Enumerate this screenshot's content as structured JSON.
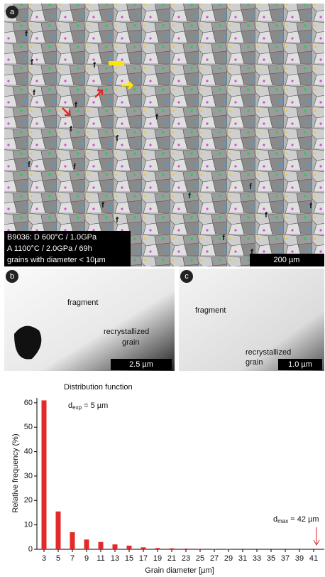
{
  "panel_a": {
    "label": "a",
    "fragment_marks": [
      "f",
      "f",
      "f",
      "f",
      "f",
      "f",
      "f",
      "f",
      "f",
      "f",
      "f",
      "f",
      "f",
      "f",
      "f",
      "f",
      "f",
      "f"
    ],
    "caption": [
      "B9036: D 600°C / 1.0GPa",
      "A 1100°C / 2.0GPa / 69h",
      "grains with diameter < 10µm"
    ],
    "scale_bar": "200 µm"
  },
  "panel_b": {
    "label": "b",
    "fragment": "fragment",
    "recrystallized": [
      "recrystallized",
      "grain"
    ],
    "scale_bar": "2.5 µm"
  },
  "panel_c": {
    "label": "c",
    "fragment": "fragment",
    "recrystallized": [
      "recrystallized",
      "grain"
    ],
    "scale_bar": "1.0 µm"
  },
  "chart_data": {
    "type": "bar",
    "title": "Distribution function",
    "annotations": [
      {
        "main": "d",
        "sub": "exp",
        "rest": " = 5 µm"
      },
      {
        "main": "d",
        "sub": "max",
        "rest": " = 42 µm"
      }
    ],
    "x": [
      3,
      5,
      7,
      9,
      11,
      13,
      15,
      17,
      19,
      21,
      23,
      25,
      27,
      29,
      31,
      33,
      35,
      37,
      39,
      41
    ],
    "values": [
      61,
      15.5,
      7,
      4,
      3,
      2,
      1.5,
      0.8,
      0.5,
      0.4,
      0.3,
      0.2,
      0.1,
      0.1,
      0,
      0,
      0,
      0,
      0,
      0
    ],
    "color": "#e32a2a",
    "xlim": [
      2,
      42.5
    ],
    "xticks": [
      3,
      5,
      7,
      9,
      11,
      13,
      15,
      17,
      19,
      21,
      23,
      25,
      27,
      29,
      31,
      33,
      35,
      37,
      39,
      41
    ],
    "ylim": [
      0,
      62
    ],
    "yticks": [
      0,
      10,
      20,
      30,
      40,
      50,
      60
    ],
    "xlabel": "Grain diameter [µm]",
    "ylabel": "Relative frequency (%)"
  }
}
